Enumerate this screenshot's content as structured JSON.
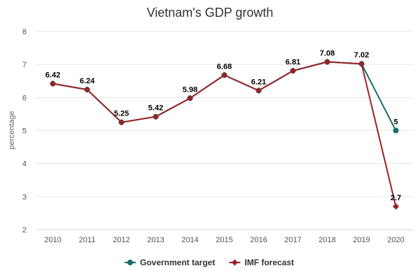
{
  "chart_data": {
    "type": "line",
    "title": "Vietnam's GDP growth",
    "xlabel": "",
    "ylabel": "percentage",
    "categories": [
      "2010",
      "2011",
      "2012",
      "2013",
      "2014",
      "2015",
      "2016",
      "2017",
      "2018",
      "2019",
      "2020"
    ],
    "ylim": [
      2,
      8
    ],
    "yticks": [
      2,
      3,
      4,
      5,
      6,
      7,
      8
    ],
    "grid": true,
    "legend": "bottom",
    "series": [
      {
        "name": "Government target",
        "color": "#1a6b6b",
        "marker": "circle",
        "values": [
          6.42,
          6.24,
          5.25,
          5.42,
          5.98,
          6.68,
          6.21,
          6.81,
          7.08,
          7.02,
          5
        ],
        "labels": [
          null,
          null,
          null,
          null,
          null,
          null,
          null,
          null,
          null,
          null,
          "5"
        ]
      },
      {
        "name": "IMF forecast",
        "color": "#9b2226",
        "marker": "diamond",
        "values": [
          6.42,
          6.24,
          5.25,
          5.42,
          5.98,
          6.68,
          6.21,
          6.81,
          7.08,
          7.02,
          2.7
        ],
        "labels": [
          "6.42",
          "6.24",
          "5.25",
          "5.42",
          "5.98",
          "6.68",
          "6.21",
          "6.81",
          "7.08",
          "7.02",
          "2.7"
        ]
      }
    ]
  }
}
